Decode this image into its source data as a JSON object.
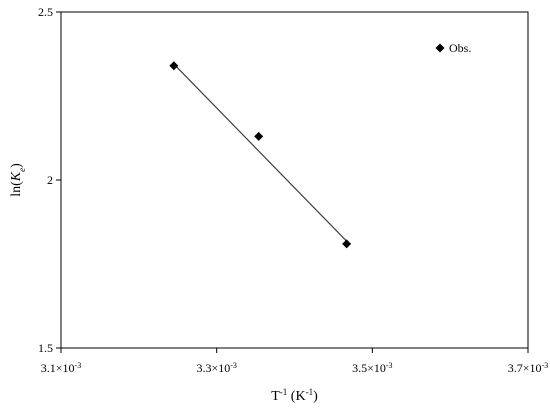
{
  "chart_data": {
    "type": "scatter",
    "title": "",
    "xlabel": {
      "base": "T",
      "sup1": "-1",
      "mid": " (K",
      "sup2": "-1",
      "end": ")"
    },
    "ylabel": {
      "base": "ln(",
      "italic": "K",
      "sub": "e",
      "end": ")"
    },
    "xlim": [
      0.0031,
      0.0037
    ],
    "ylim": [
      1.5,
      2.5
    ],
    "xticks": [
      0.0031,
      0.0033,
      0.0035,
      0.0037
    ],
    "xtick_labels": [
      {
        "mant": "3.1×10",
        "exp": "-3"
      },
      {
        "mant": "3.3×10",
        "exp": "-3"
      },
      {
        "mant": "3.5×10",
        "exp": "-3"
      },
      {
        "mant": "3.7×10",
        "exp": "-3"
      }
    ],
    "yticks": [
      1.5,
      2.0,
      2.5
    ],
    "ytick_labels": [
      "1.5",
      "2",
      "2.5"
    ],
    "grid": false,
    "legend_position": "top-right",
    "series": [
      {
        "name": "Obs.",
        "marker": "diamond",
        "color": "#000000",
        "x": [
          0.003245,
          0.003354,
          0.003467
        ],
        "y": [
          2.34,
          2.13,
          1.81
        ]
      }
    ],
    "trendline": {
      "color": "#404040",
      "x": [
        0.003245,
        0.003467
      ],
      "y": [
        2.345,
        1.818
      ]
    }
  }
}
